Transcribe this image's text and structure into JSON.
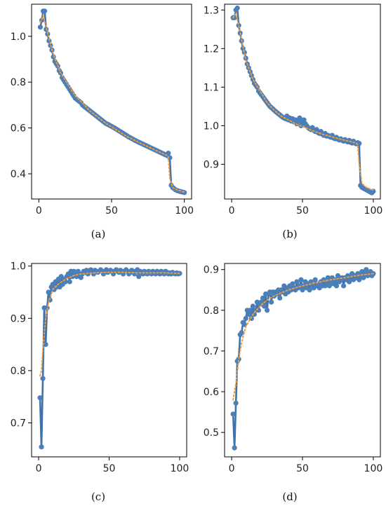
{
  "colors": {
    "series_line": "#3c72ad",
    "series_marker": "#4a7fb9",
    "trend_line": "#f39a3c",
    "axis": "#000000"
  },
  "chart_data": [
    {
      "panel": "a",
      "caption": "(a)",
      "type": "line",
      "xlim": [
        -5,
        105
      ],
      "ylim": [
        0.29,
        1.14
      ],
      "xticks": [
        0,
        50,
        100
      ],
      "yticks": [
        0.4,
        0.6,
        0.8,
        1.0
      ],
      "xtick_labels": [
        "0",
        "50",
        "100"
      ],
      "ytick_labels": [
        "0.4",
        "0.6",
        "0.8",
        "1.0"
      ],
      "series": [
        {
          "style": "solid-markers",
          "x": [
            1,
            2,
            3,
            4,
            5,
            6,
            7,
            8,
            9,
            10,
            11,
            12,
            13,
            14,
            15,
            16,
            17,
            18,
            19,
            20,
            21,
            22,
            23,
            24,
            25,
            26,
            27,
            28,
            29,
            30,
            31,
            32,
            33,
            34,
            35,
            36,
            37,
            38,
            39,
            40,
            41,
            42,
            43,
            44,
            45,
            46,
            47,
            48,
            49,
            50,
            51,
            52,
            53,
            54,
            55,
            56,
            57,
            58,
            59,
            60,
            61,
            62,
            63,
            64,
            65,
            66,
            67,
            68,
            69,
            70,
            71,
            72,
            73,
            74,
            75,
            76,
            77,
            78,
            79,
            80,
            81,
            82,
            83,
            84,
            85,
            86,
            87,
            88,
            89,
            90,
            91,
            92,
            93,
            94,
            95,
            96,
            97,
            98,
            99,
            100
          ],
          "y": [
            1.04,
            1.07,
            1.11,
            1.11,
            1.03,
            1.01,
            0.98,
            0.96,
            0.94,
            0.91,
            0.89,
            0.88,
            0.87,
            0.85,
            0.84,
            0.82,
            0.81,
            0.8,
            0.79,
            0.78,
            0.77,
            0.76,
            0.75,
            0.74,
            0.73,
            0.725,
            0.72,
            0.715,
            0.71,
            0.7,
            0.695,
            0.69,
            0.685,
            0.68,
            0.675,
            0.67,
            0.665,
            0.66,
            0.655,
            0.65,
            0.645,
            0.64,
            0.635,
            0.63,
            0.625,
            0.62,
            0.617,
            0.614,
            0.61,
            0.607,
            0.603,
            0.6,
            0.596,
            0.592,
            0.588,
            0.584,
            0.58,
            0.576,
            0.572,
            0.568,
            0.564,
            0.56,
            0.557,
            0.553,
            0.55,
            0.546,
            0.543,
            0.54,
            0.537,
            0.534,
            0.531,
            0.528,
            0.525,
            0.522,
            0.519,
            0.516,
            0.513,
            0.51,
            0.507,
            0.504,
            0.501,
            0.498,
            0.495,
            0.492,
            0.489,
            0.486,
            0.483,
            0.48,
            0.49,
            0.47,
            0.35,
            0.34,
            0.335,
            0.33,
            0.327,
            0.325,
            0.323,
            0.321,
            0.32,
            0.318
          ]
        },
        {
          "style": "dotted",
          "x": [
            1,
            3,
            5,
            10,
            15,
            20,
            25,
            30,
            35,
            40,
            45,
            50,
            55,
            60,
            65,
            70,
            75,
            80,
            85,
            88,
            89,
            90,
            92,
            95,
            100
          ],
          "y": [
            1.06,
            1.09,
            1.04,
            0.92,
            0.84,
            0.79,
            0.74,
            0.71,
            0.675,
            0.65,
            0.625,
            0.605,
            0.585,
            0.565,
            0.549,
            0.533,
            0.518,
            0.503,
            0.489,
            0.48,
            0.475,
            0.38,
            0.34,
            0.33,
            0.32
          ]
        }
      ]
    },
    {
      "panel": "b",
      "caption": "(b)",
      "type": "line",
      "xlim": [
        -5,
        105
      ],
      "ylim": [
        0.81,
        1.315
      ],
      "xticks": [
        0,
        50,
        100
      ],
      "yticks": [
        0.9,
        1.0,
        1.1,
        1.2,
        1.3
      ],
      "xtick_labels": [
        "0",
        "50",
        "100"
      ],
      "ytick_labels": [
        "0.9",
        "1.0",
        "1.1",
        "1.2",
        "1.3"
      ],
      "series": [
        {
          "style": "solid-markers",
          "x": [
            1,
            2,
            3,
            4,
            5,
            6,
            7,
            8,
            9,
            10,
            11,
            12,
            13,
            14,
            15,
            16,
            17,
            18,
            19,
            20,
            21,
            22,
            23,
            24,
            25,
            26,
            27,
            28,
            29,
            30,
            31,
            32,
            33,
            34,
            35,
            36,
            37,
            38,
            39,
            40,
            41,
            42,
            43,
            44,
            45,
            46,
            47,
            48,
            49,
            50,
            51,
            52,
            53,
            54,
            55,
            56,
            57,
            58,
            59,
            60,
            61,
            62,
            63,
            64,
            65,
            66,
            67,
            68,
            69,
            70,
            71,
            72,
            73,
            74,
            75,
            76,
            77,
            78,
            79,
            80,
            81,
            82,
            83,
            84,
            85,
            86,
            87,
            88,
            89,
            90,
            91,
            92,
            93,
            94,
            95,
            96,
            97,
            98,
            99,
            100
          ],
          "y": [
            1.28,
            1.28,
            1.3,
            1.305,
            1.26,
            1.24,
            1.22,
            1.2,
            1.19,
            1.175,
            1.16,
            1.15,
            1.14,
            1.13,
            1.12,
            1.11,
            1.105,
            1.1,
            1.09,
            1.085,
            1.08,
            1.075,
            1.07,
            1.065,
            1.06,
            1.055,
            1.05,
            1.047,
            1.044,
            1.04,
            1.037,
            1.034,
            1.031,
            1.028,
            1.025,
            1.022,
            1.02,
            1.018,
            1.025,
            1.015,
            1.02,
            1.012,
            1.018,
            1.01,
            1.015,
            1.005,
            1.012,
            1.02,
            1.0,
            1.01,
            1.015,
            1.005,
            1.0,
            0.995,
            0.992,
            0.99,
            0.995,
            0.988,
            0.985,
            0.99,
            0.982,
            0.98,
            0.985,
            0.978,
            0.975,
            0.98,
            0.973,
            0.975,
            0.972,
            0.97,
            0.975,
            0.968,
            0.966,
            0.97,
            0.965,
            0.963,
            0.966,
            0.962,
            0.96,
            0.964,
            0.96,
            0.958,
            0.962,
            0.957,
            0.955,
            0.96,
            0.955,
            0.953,
            0.956,
            0.954,
            0.845,
            0.84,
            0.838,
            0.836,
            0.834,
            0.832,
            0.83,
            0.828,
            0.826,
            0.83
          ]
        },
        {
          "style": "dotted",
          "x": [
            1,
            3,
            5,
            10,
            15,
            20,
            25,
            30,
            35,
            40,
            45,
            50,
            55,
            60,
            65,
            70,
            75,
            80,
            85,
            88,
            89,
            90,
            92,
            95,
            100
          ],
          "y": [
            1.28,
            1.29,
            1.26,
            1.17,
            1.12,
            1.09,
            1.06,
            1.04,
            1.025,
            1.015,
            1.005,
            0.998,
            0.99,
            0.983,
            0.977,
            0.972,
            0.967,
            0.962,
            0.958,
            0.955,
            0.95,
            0.9,
            0.85,
            0.84,
            0.833
          ]
        }
      ]
    },
    {
      "panel": "c",
      "caption": "(c)",
      "type": "line",
      "xlim": [
        -5,
        105
      ],
      "ylim": [
        0.635,
        1.005
      ],
      "xticks": [
        0,
        50,
        100
      ],
      "yticks": [
        0.7,
        0.8,
        0.9,
        1.0
      ],
      "xtick_labels": [
        "0",
        "50",
        "100"
      ],
      "ytick_labels": [
        "0.7",
        "0.8",
        "0.9",
        "1.0"
      ],
      "series": [
        {
          "style": "solid-markers",
          "x": [
            1,
            2,
            3,
            4,
            5,
            6,
            7,
            8,
            9,
            10,
            11,
            12,
            13,
            14,
            15,
            16,
            17,
            18,
            19,
            20,
            21,
            22,
            23,
            24,
            25,
            26,
            27,
            28,
            29,
            30,
            31,
            32,
            33,
            34,
            35,
            36,
            37,
            38,
            39,
            40,
            41,
            42,
            43,
            44,
            45,
            46,
            47,
            48,
            49,
            50,
            51,
            52,
            53,
            54,
            55,
            56,
            57,
            58,
            59,
            60,
            61,
            62,
            63,
            64,
            65,
            66,
            67,
            68,
            69,
            70,
            71,
            72,
            73,
            74,
            75,
            76,
            77,
            78,
            79,
            80,
            81,
            82,
            83,
            84,
            85,
            86,
            87,
            88,
            89,
            90,
            91,
            92,
            93,
            94,
            95,
            96,
            97,
            98,
            99,
            100
          ],
          "y": [
            0.748,
            0.654,
            0.785,
            0.92,
            0.85,
            0.92,
            0.95,
            0.935,
            0.96,
            0.965,
            0.955,
            0.97,
            0.96,
            0.975,
            0.96,
            0.98,
            0.965,
            0.975,
            0.97,
            0.98,
            0.985,
            0.97,
            0.99,
            0.98,
            0.99,
            0.985,
            0.98,
            0.99,
            0.985,
            0.978,
            0.985,
            0.99,
            0.988,
            0.992,
            0.985,
            0.99,
            0.993,
            0.99,
            0.985,
            0.992,
            0.99,
            0.988,
            0.99,
            0.993,
            0.99,
            0.985,
            0.99,
            0.993,
            0.988,
            0.99,
            0.992,
            0.99,
            0.985,
            0.99,
            0.993,
            0.99,
            0.988,
            0.992,
            0.99,
            0.985,
            0.99,
            0.993,
            0.99,
            0.985,
            0.988,
            0.992,
            0.99,
            0.985,
            0.99,
            0.993,
            0.98,
            0.99,
            0.988,
            0.985,
            0.99,
            0.986,
            0.985,
            0.99,
            0.988,
            0.985,
            0.99,
            0.987,
            0.985,
            0.99,
            0.988,
            0.985,
            0.99,
            0.987,
            0.985,
            0.99,
            0.988,
            0.985,
            0.987,
            0.985,
            0.988,
            0.986,
            0.985,
            0.987,
            0.985,
            0.986
          ]
        },
        {
          "style": "dotted",
          "x": [
            1,
            2,
            3,
            5,
            7,
            10,
            15,
            20,
            25,
            30,
            40,
            50,
            60,
            70,
            80,
            90,
            100
          ],
          "y": [
            0.79,
            0.8,
            0.84,
            0.9,
            0.93,
            0.955,
            0.968,
            0.976,
            0.982,
            0.985,
            0.987,
            0.988,
            0.988,
            0.987,
            0.987,
            0.987,
            0.986
          ]
        }
      ]
    },
    {
      "panel": "d",
      "caption": "(d)",
      "type": "line",
      "xlim": [
        -5,
        105
      ],
      "ylim": [
        0.44,
        0.915
      ],
      "xticks": [
        0,
        50,
        100
      ],
      "yticks": [
        0.5,
        0.6,
        0.7,
        0.8,
        0.9
      ],
      "xtick_labels": [
        "0",
        "50",
        "100"
      ],
      "ytick_labels": [
        "0.5",
        "0.6",
        "0.7",
        "0.8",
        "0.9"
      ],
      "series": [
        {
          "style": "solid-markers",
          "x": [
            1,
            2,
            3,
            4,
            5,
            6,
            7,
            8,
            9,
            10,
            11,
            12,
            13,
            14,
            15,
            16,
            17,
            18,
            19,
            20,
            21,
            22,
            23,
            24,
            25,
            26,
            27,
            28,
            29,
            30,
            31,
            32,
            33,
            34,
            35,
            36,
            37,
            38,
            39,
            40,
            41,
            42,
            43,
            44,
            45,
            46,
            47,
            48,
            49,
            50,
            51,
            52,
            53,
            54,
            55,
            56,
            57,
            58,
            59,
            60,
            61,
            62,
            63,
            64,
            65,
            66,
            67,
            68,
            69,
            70,
            71,
            72,
            73,
            74,
            75,
            76,
            77,
            78,
            79,
            80,
            81,
            82,
            83,
            84,
            85,
            86,
            87,
            88,
            89,
            90,
            91,
            92,
            93,
            94,
            95,
            96,
            97,
            98,
            99,
            100
          ],
          "y": [
            0.545,
            0.462,
            0.572,
            0.675,
            0.68,
            0.74,
            0.745,
            0.77,
            0.765,
            0.78,
            0.8,
            0.79,
            0.8,
            0.78,
            0.81,
            0.79,
            0.8,
            0.82,
            0.8,
            0.815,
            0.82,
            0.83,
            0.81,
            0.84,
            0.8,
            0.84,
            0.845,
            0.82,
            0.845,
            0.835,
            0.845,
            0.84,
            0.85,
            0.83,
            0.85,
            0.845,
            0.86,
            0.84,
            0.855,
            0.845,
            0.86,
            0.85,
            0.865,
            0.855,
            0.85,
            0.87,
            0.855,
            0.86,
            0.875,
            0.85,
            0.86,
            0.87,
            0.855,
            0.865,
            0.85,
            0.87,
            0.86,
            0.855,
            0.875,
            0.86,
            0.865,
            0.855,
            0.87,
            0.86,
            0.875,
            0.86,
            0.865,
            0.88,
            0.86,
            0.87,
            0.88,
            0.865,
            0.875,
            0.86,
            0.885,
            0.87,
            0.875,
            0.88,
            0.86,
            0.88,
            0.875,
            0.885,
            0.87,
            0.88,
            0.89,
            0.875,
            0.885,
            0.88,
            0.89,
            0.875,
            0.885,
            0.895,
            0.88,
            0.89,
            0.9,
            0.885,
            0.89,
            0.895,
            0.885,
            0.89
          ]
        },
        {
          "style": "dotted",
          "x": [
            1,
            2,
            3,
            5,
            7,
            10,
            15,
            20,
            25,
            30,
            40,
            50,
            60,
            70,
            80,
            90,
            100
          ],
          "y": [
            0.58,
            0.6,
            0.62,
            0.68,
            0.72,
            0.76,
            0.79,
            0.81,
            0.825,
            0.835,
            0.85,
            0.86,
            0.868,
            0.875,
            0.88,
            0.886,
            0.89
          ]
        }
      ]
    }
  ]
}
